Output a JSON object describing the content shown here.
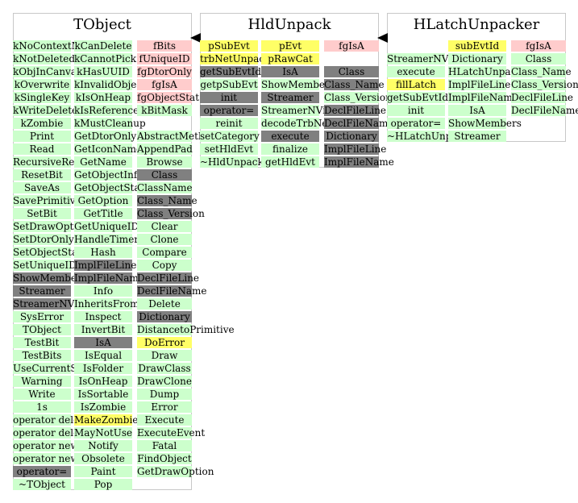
{
  "classes": [
    {
      "title": "TObject",
      "columns": [
        {
          "items": [
            {
              "t": "kNoContextMenu",
              "c": "green"
            },
            {
              "t": "kNotDeleted",
              "c": "green"
            },
            {
              "t": "kObjInCanvas",
              "c": "green"
            },
            {
              "t": "kOverwrite",
              "c": "green"
            },
            {
              "t": "kSingleKey",
              "c": "green"
            },
            {
              "t": "kWriteDelete",
              "c": "green"
            },
            {
              "t": "kZombie",
              "c": "green"
            },
            {
              "t": "Print",
              "c": "green"
            },
            {
              "t": "Read",
              "c": "green"
            },
            {
              "t": "RecursiveRemove",
              "c": "green"
            },
            {
              "t": "ResetBit",
              "c": "green"
            },
            {
              "t": "SaveAs",
              "c": "green"
            },
            {
              "t": "SavePrimitive",
              "c": "green"
            },
            {
              "t": "SetBit",
              "c": "green"
            },
            {
              "t": "SetDrawOption",
              "c": "green"
            },
            {
              "t": "SetDtorOnly",
              "c": "green"
            },
            {
              "t": "SetObjectStat",
              "c": "green"
            },
            {
              "t": "SetUniqueID",
              "c": "green"
            },
            {
              "t": "ShowMembers",
              "c": "gray"
            },
            {
              "t": "Streamer",
              "c": "gray"
            },
            {
              "t": "StreamerNVirtual",
              "c": "gray"
            },
            {
              "t": "SysError",
              "c": "green"
            },
            {
              "t": "TObject",
              "c": "green"
            },
            {
              "t": "TestBit",
              "c": "green"
            },
            {
              "t": "TestBits",
              "c": "green"
            },
            {
              "t": "UseCurrentStyle",
              "c": "green"
            },
            {
              "t": "Warning",
              "c": "green"
            },
            {
              "t": "Write",
              "c": "green"
            },
            {
              "t": "1s",
              "c": "green"
            },
            {
              "t": "operator delete",
              "c": "green"
            },
            {
              "t": "operator delete[]",
              "c": "green"
            },
            {
              "t": "operator new",
              "c": "green"
            },
            {
              "t": "operator new[]",
              "c": "green"
            },
            {
              "t": "operator=",
              "c": "gray"
            },
            {
              "t": "~TObject",
              "c": "green"
            }
          ]
        },
        {
          "items": [
            {
              "t": "kCanDelete",
              "c": "green"
            },
            {
              "t": "kCannotPick",
              "c": "green"
            },
            {
              "t": "kHasUUID",
              "c": "green"
            },
            {
              "t": "kInvalidObject",
              "c": "green"
            },
            {
              "t": "kIsOnHeap",
              "c": "green"
            },
            {
              "t": "kIsReferenced",
              "c": "green"
            },
            {
              "t": "kMustCleanup",
              "c": "green"
            },
            {
              "t": "GetDtorOnly",
              "c": "green"
            },
            {
              "t": "GetIconName",
              "c": "green"
            },
            {
              "t": "GetName",
              "c": "green"
            },
            {
              "t": "GetObjectInfo",
              "c": "green"
            },
            {
              "t": "GetObjectStat",
              "c": "green"
            },
            {
              "t": "GetOption",
              "c": "green"
            },
            {
              "t": "GetTitle",
              "c": "green"
            },
            {
              "t": "GetUniqueID",
              "c": "green"
            },
            {
              "t": "HandleTimer",
              "c": "green"
            },
            {
              "t": "Hash",
              "c": "green"
            },
            {
              "t": "ImplFileLine",
              "c": "gray"
            },
            {
              "t": "ImplFileName",
              "c": "gray"
            },
            {
              "t": "Info",
              "c": "green"
            },
            {
              "t": "InheritsFrom",
              "c": "green"
            },
            {
              "t": "Inspect",
              "c": "green"
            },
            {
              "t": "InvertBit",
              "c": "green"
            },
            {
              "t": "IsA",
              "c": "gray"
            },
            {
              "t": "IsEqual",
              "c": "green"
            },
            {
              "t": "IsFolder",
              "c": "green"
            },
            {
              "t": "IsOnHeap",
              "c": "green"
            },
            {
              "t": "IsSortable",
              "c": "green"
            },
            {
              "t": "IsZombie",
              "c": "green"
            },
            {
              "t": "MakeZombie",
              "c": "yellow"
            },
            {
              "t": "MayNotUse",
              "c": "green"
            },
            {
              "t": "Notify",
              "c": "green"
            },
            {
              "t": "Obsolete",
              "c": "green"
            },
            {
              "t": "Paint",
              "c": "green"
            },
            {
              "t": "Pop",
              "c": "green"
            }
          ]
        },
        {
          "items": [
            {
              "t": "fBits",
              "c": "pink"
            },
            {
              "t": "fUniqueID",
              "c": "pink"
            },
            {
              "t": "fgDtorOnly",
              "c": "pink"
            },
            {
              "t": "fgIsA",
              "c": "pink"
            },
            {
              "t": "fgObjectStat",
              "c": "pink"
            },
            {
              "t": "kBitMask",
              "c": "green"
            },
            {
              "t": "",
              "c": "none"
            },
            {
              "t": "AbstractMethod",
              "c": "green"
            },
            {
              "t": "AppendPad",
              "c": "green"
            },
            {
              "t": "Browse",
              "c": "green"
            },
            {
              "t": "Class",
              "c": "gray"
            },
            {
              "t": "ClassName",
              "c": "green"
            },
            {
              "t": "Class_Name",
              "c": "gray"
            },
            {
              "t": "Class_Version",
              "c": "gray"
            },
            {
              "t": "Clear",
              "c": "green"
            },
            {
              "t": "Clone",
              "c": "green"
            },
            {
              "t": "Compare",
              "c": "green"
            },
            {
              "t": "Copy",
              "c": "green"
            },
            {
              "t": "DeclFileLine",
              "c": "gray"
            },
            {
              "t": "DeclFileName",
              "c": "gray"
            },
            {
              "t": "Delete",
              "c": "green"
            },
            {
              "t": "Dictionary",
              "c": "gray"
            },
            {
              "t": "DistancetoPrimitive",
              "c": "green"
            },
            {
              "t": "DoError",
              "c": "yellow"
            },
            {
              "t": "Draw",
              "c": "green"
            },
            {
              "t": "DrawClass",
              "c": "green"
            },
            {
              "t": "DrawClone",
              "c": "green"
            },
            {
              "t": "Dump",
              "c": "green"
            },
            {
              "t": "Error",
              "c": "green"
            },
            {
              "t": "Execute",
              "c": "green"
            },
            {
              "t": "ExecuteEvent",
              "c": "green"
            },
            {
              "t": "Fatal",
              "c": "green"
            },
            {
              "t": "FindObject",
              "c": "green"
            },
            {
              "t": "GetDrawOption",
              "c": "green"
            }
          ]
        }
      ]
    },
    {
      "title": "HldUnpack",
      "columns": [
        {
          "items": [
            {
              "t": "pSubEvt",
              "c": "yellow"
            },
            {
              "t": "trbNetUnpacker",
              "c": "yellow"
            },
            {
              "t": "getSubEvtId",
              "c": "gray"
            },
            {
              "t": "getpSubEvt",
              "c": "green"
            },
            {
              "t": "init",
              "c": "gray"
            },
            {
              "t": "operator=",
              "c": "gray"
            },
            {
              "t": "reinit",
              "c": "green"
            },
            {
              "t": "setCategory",
              "c": "green"
            },
            {
              "t": "setHldEvt",
              "c": "green"
            },
            {
              "t": "~HldUnpack",
              "c": "green"
            }
          ]
        },
        {
          "items": [
            {
              "t": "pEvt",
              "c": "yellow"
            },
            {
              "t": "pRawCat",
              "c": "yellow"
            },
            {
              "t": "IsA",
              "c": "gray"
            },
            {
              "t": "ShowMembers",
              "c": "green"
            },
            {
              "t": "Streamer",
              "c": "gray"
            },
            {
              "t": "StreamerNVirtual",
              "c": "green"
            },
            {
              "t": "decodeTrbNet",
              "c": "green"
            },
            {
              "t": "execute",
              "c": "gray"
            },
            {
              "t": "finalize",
              "c": "green"
            },
            {
              "t": "getHldEvt",
              "c": "green"
            }
          ]
        },
        {
          "items": [
            {
              "t": "fgIsA",
              "c": "pink"
            },
            {
              "t": "",
              "c": "none"
            },
            {
              "t": "Class",
              "c": "gray"
            },
            {
              "t": "Class_Name",
              "c": "gray"
            },
            {
              "t": "Class_Version",
              "c": "green"
            },
            {
              "t": "DeclFileLine",
              "c": "gray"
            },
            {
              "t": "DeclFileName",
              "c": "gray"
            },
            {
              "t": "Dictionary",
              "c": "gray"
            },
            {
              "t": "ImplFileLine",
              "c": "gray"
            },
            {
              "t": "ImplFileName",
              "c": "gray"
            }
          ]
        }
      ]
    },
    {
      "title": "HLatchUnpacker",
      "columns": [
        {
          "items": [
            {
              "t": "",
              "c": "none"
            },
            {
              "t": "StreamerNVirtual",
              "c": "green"
            },
            {
              "t": "execute",
              "c": "green"
            },
            {
              "t": "fillLatch",
              "c": "yellow"
            },
            {
              "t": "getSubEvtId",
              "c": "green"
            },
            {
              "t": "init",
              "c": "green"
            },
            {
              "t": "operator=",
              "c": "green"
            },
            {
              "t": "~HLatchUnpacker",
              "c": "green"
            }
          ]
        },
        {
          "items": [
            {
              "t": "subEvtId",
              "c": "yellow"
            },
            {
              "t": "Dictionary",
              "c": "green"
            },
            {
              "t": "HLatchUnpacker",
              "c": "green"
            },
            {
              "t": "ImplFileLine",
              "c": "green"
            },
            {
              "t": "ImplFileName",
              "c": "green"
            },
            {
              "t": "IsA",
              "c": "green"
            },
            {
              "t": "ShowMembers",
              "c": "green"
            },
            {
              "t": "Streamer",
              "c": "green"
            }
          ]
        },
        {
          "items": [
            {
              "t": "fgIsA",
              "c": "pink"
            },
            {
              "t": "Class",
              "c": "green"
            },
            {
              "t": "Class_Name",
              "c": "green"
            },
            {
              "t": "Class_Version",
              "c": "green"
            },
            {
              "t": "DeclFileLine",
              "c": "green"
            },
            {
              "t": "DeclFileName",
              "c": "green"
            }
          ]
        }
      ]
    }
  ],
  "colors": {
    "green": "#ccffcc",
    "gray": "#808080",
    "pink": "#ffcccc",
    "yellow": "#ffff66",
    "border": "#c8c8c8"
  }
}
